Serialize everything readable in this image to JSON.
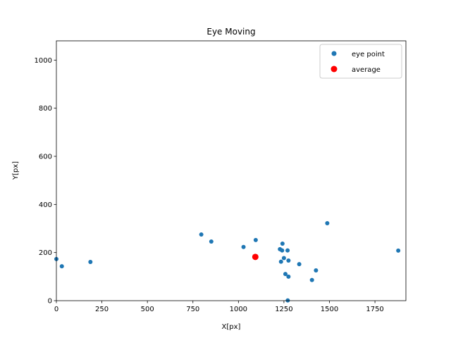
{
  "chart_data": {
    "type": "scatter",
    "title": "Eye Moving",
    "xlabel": "X[px]",
    "ylabel": "Y[px]",
    "xlim": [
      0,
      1920
    ],
    "ylim": [
      0,
      1080
    ],
    "xticks": [
      0,
      250,
      500,
      750,
      1000,
      1250,
      1500,
      1750
    ],
    "yticks": [
      0,
      200,
      400,
      600,
      800,
      1000
    ],
    "legend": "top-right",
    "grid": false,
    "series": [
      {
        "name": "eye point",
        "color": "#1f77b4",
        "marker": "small-circle",
        "points": [
          [
            0,
            173
          ],
          [
            30,
            143
          ],
          [
            187,
            161
          ],
          [
            796,
            275
          ],
          [
            851,
            246
          ],
          [
            1028,
            223
          ],
          [
            1095,
            252
          ],
          [
            1228,
            214
          ],
          [
            1240,
            209
          ],
          [
            1242,
            237
          ],
          [
            1234,
            162
          ],
          [
            1250,
            177
          ],
          [
            1270,
            209
          ],
          [
            1275,
            167
          ],
          [
            1258,
            111
          ],
          [
            1275,
            100
          ],
          [
            1334,
            152
          ],
          [
            1271,
            1
          ],
          [
            1404,
            86
          ],
          [
            1426,
            126
          ],
          [
            1488,
            322
          ],
          [
            1878,
            208
          ]
        ]
      },
      {
        "name": "average",
        "color": "#ff0000",
        "marker": "large-circle",
        "points": [
          [
            1093,
            182
          ]
        ]
      }
    ]
  }
}
